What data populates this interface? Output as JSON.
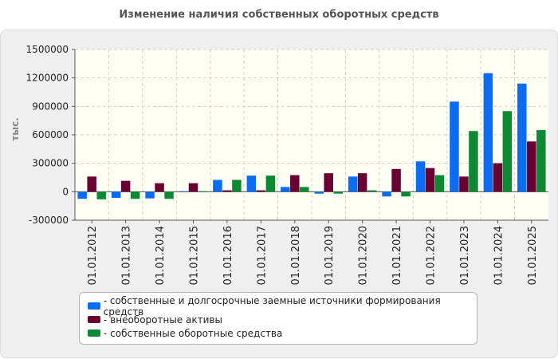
{
  "chart_data": {
    "type": "bar",
    "title": "Изменение наличия собственных оборотных средств",
    "ylabel": "тыс.",
    "xlabel": "",
    "ylim": [
      -300000,
      1500000
    ],
    "yticks": [
      -300000,
      0,
      300000,
      600000,
      900000,
      1200000,
      1500000
    ],
    "grid": true,
    "legend_position": "bottom",
    "categories": [
      "01.01.2012",
      "01.01.2013",
      "01.01.2014",
      "01.01.2015",
      "01.01.2016",
      "01.01.2017",
      "01.01.2018",
      "01.01.2019",
      "01.01.2020",
      "01.01.2021",
      "01.01.2022",
      "01.01.2023",
      "01.01.2024",
      "01.01.2025"
    ],
    "series": [
      {
        "name": "- собственные и долгосрочные заемные источники формирования средств",
        "color": "#0a6bf5",
        "values": [
          -75000,
          -65000,
          -70000,
          5000,
          125000,
          170000,
          50000,
          -20000,
          160000,
          -50000,
          320000,
          950000,
          1250000,
          1140000
        ]
      },
      {
        "name": "- внеоборотные активы",
        "color": "#6a0032",
        "values": [
          160000,
          115000,
          90000,
          90000,
          15000,
          15000,
          175000,
          195000,
          195000,
          240000,
          250000,
          160000,
          300000,
          530000
        ]
      },
      {
        "name": "- собственные оборотные средства",
        "color": "#0b8a33",
        "values": [
          -80000,
          -75000,
          -75000,
          5000,
          125000,
          170000,
          50000,
          -20000,
          15000,
          -50000,
          175000,
          640000,
          850000,
          650000
        ]
      }
    ]
  }
}
